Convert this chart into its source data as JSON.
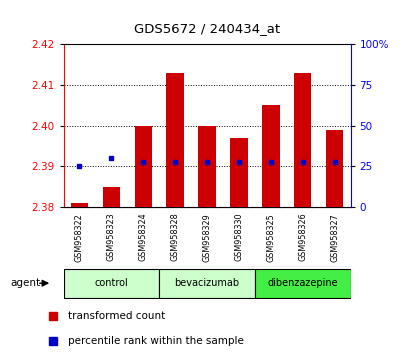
{
  "title": "GDS5672 / 240434_at",
  "samples": [
    "GSM958322",
    "GSM958323",
    "GSM958324",
    "GSM958328",
    "GSM958329",
    "GSM958330",
    "GSM958325",
    "GSM958326",
    "GSM958327"
  ],
  "bar_values": [
    2.381,
    2.385,
    2.4,
    2.413,
    2.4,
    2.397,
    2.405,
    2.413,
    2.399
  ],
  "percentile_values": [
    2.39,
    2.392,
    2.391,
    2.391,
    2.391,
    2.391,
    2.391,
    2.391,
    2.391
  ],
  "ylim_left": [
    2.38,
    2.42
  ],
  "ylim_right": [
    0,
    100
  ],
  "yticks_left": [
    2.38,
    2.39,
    2.4,
    2.41,
    2.42
  ],
  "yticks_right": [
    0,
    25,
    50,
    75,
    100
  ],
  "bar_color": "#cc0000",
  "percentile_color": "#0000cc",
  "bar_bottom": 2.38,
  "groups": [
    {
      "label": "control",
      "indices": [
        0,
        1,
        2
      ],
      "color": "#ccffcc"
    },
    {
      "label": "bevacizumab",
      "indices": [
        3,
        4,
        5
      ],
      "color": "#ccffcc"
    },
    {
      "label": "dibenzazepine",
      "indices": [
        6,
        7,
        8
      ],
      "color": "#44ee44"
    }
  ],
  "legend_bar_label": "transformed count",
  "legend_pct_label": "percentile rank within the sample",
  "agent_label": "agent",
  "bg_color": "#ffffff",
  "sample_box_color": "#cccccc",
  "grid_color": "#000000"
}
